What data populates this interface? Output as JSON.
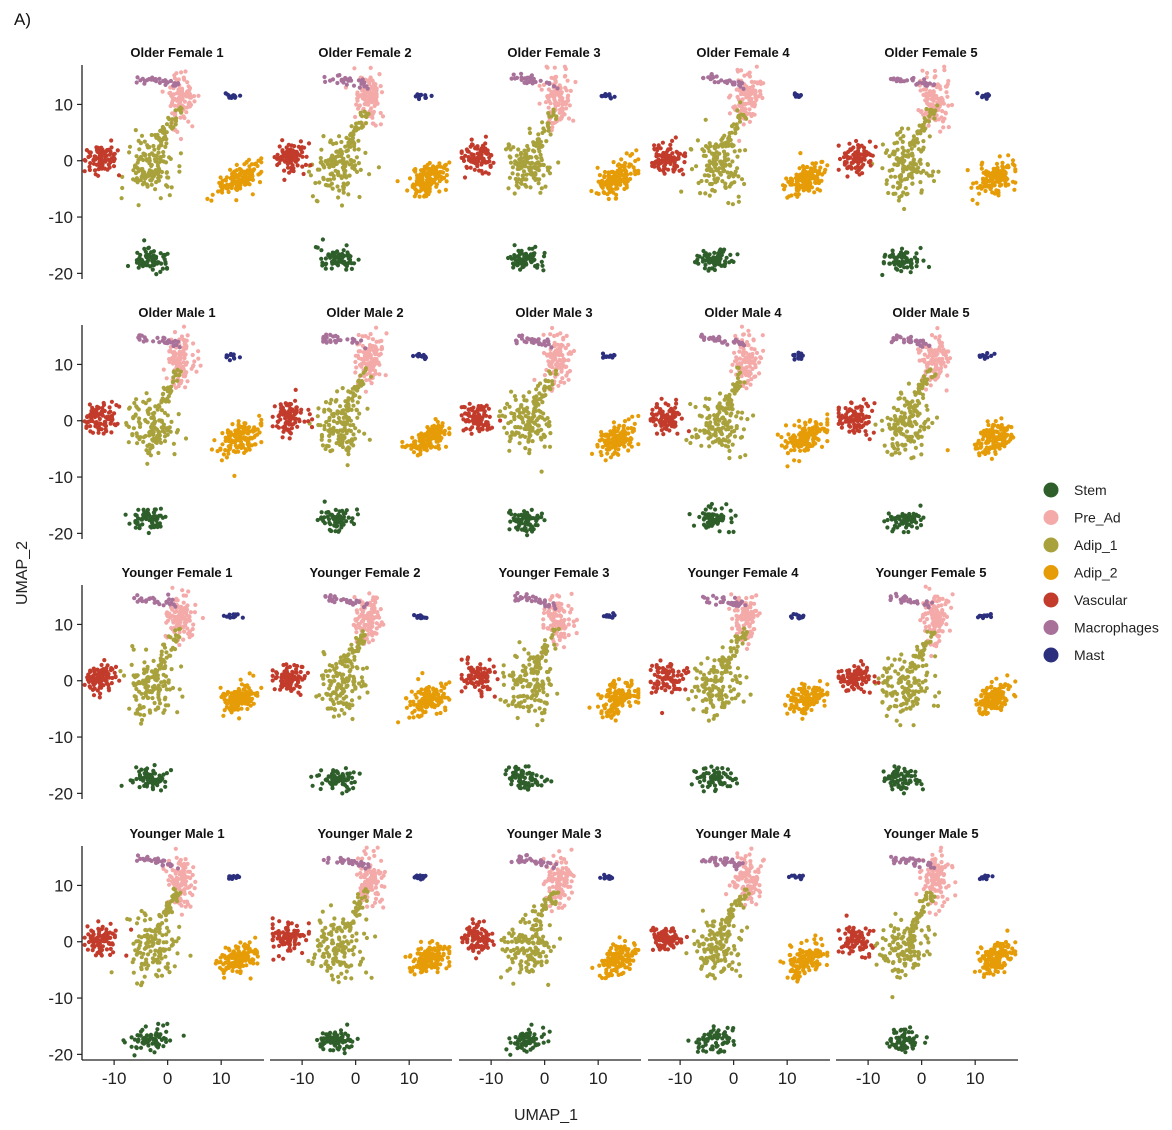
{
  "panel_label": "A)",
  "chart_data": {
    "type": "scatter",
    "subtype": "faceted UMAP embedding",
    "xlabel": "UMAP_1",
    "ylabel": "UMAP_2",
    "xlim": [
      -16,
      18
    ],
    "ylim": [
      -21,
      17
    ],
    "xticks": [
      -10,
      0,
      10
    ],
    "yticks": [
      10,
      0,
      -10,
      -20
    ],
    "grid": false,
    "legend_placement": "right",
    "facet_rows": 4,
    "facet_cols": 5,
    "facets": [
      "Older Female 1",
      "Older Female 2",
      "Older Female 3",
      "Older Female 4",
      "Older Female 5",
      "Older Male 1",
      "Older Male 2",
      "Older Male 3",
      "Older Male 4",
      "Older Male 5",
      "Younger Female 1",
      "Younger Female 2",
      "Younger Female 3",
      "Younger Female 4",
      "Younger Female 5",
      "Younger Male 1",
      "Younger Male 2",
      "Younger Male 3",
      "Younger Male 4",
      "Younger Male 5"
    ],
    "series": [
      {
        "name": "Stem",
        "color": "#2e5e2a",
        "center": [
          -3.5,
          -17.5
        ],
        "spread": [
          1.7,
          1.0
        ]
      },
      {
        "name": "Pre_Ad",
        "color": "#f4aaa8",
        "center": [
          2.5,
          11.0
        ],
        "spread": [
          1.3,
          2.2
        ]
      },
      {
        "name": "Adip_1",
        "color": "#a9a23c",
        "center": [
          -3.0,
          -1.0
        ],
        "spread": [
          2.2,
          2.6
        ]
      },
      {
        "name": "Adip_2",
        "color": "#e69c07",
        "center": [
          13.5,
          -3.2
        ],
        "spread": [
          2.4,
          1.3
        ]
      },
      {
        "name": "Vascular",
        "color": "#c23b2b",
        "center": [
          -12.5,
          0.5
        ],
        "spread": [
          1.5,
          1.3
        ]
      },
      {
        "name": "Macrophages",
        "color": "#a8719a",
        "center": [
          -4.0,
          14.2
        ],
        "spread": [
          3.0,
          0.7
        ]
      },
      {
        "name": "Mast",
        "color": "#2b2f7d",
        "center": [
          12.0,
          11.5
        ],
        "spread": [
          0.7,
          0.25
        ]
      }
    ]
  }
}
